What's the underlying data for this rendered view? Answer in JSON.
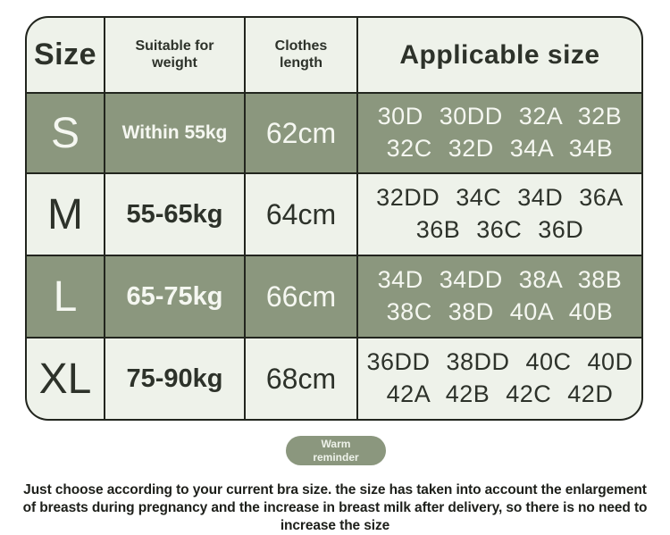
{
  "chart_data": {
    "type": "table",
    "title": "Applicable size",
    "columns": [
      "Size",
      "Suitable for weight",
      "Clothes length",
      "Applicable size"
    ],
    "rows": [
      [
        "S",
        "Within 55kg",
        "62cm",
        "30D 30DD 32A 32B 32C 32D 34A 34B"
      ],
      [
        "M",
        "55-65kg",
        "64cm",
        "32DD 34C 34D 36A 36B 36C 36D"
      ],
      [
        "L",
        "65-75kg",
        "66cm",
        "34D 34DD 38A 38B 38C 38D 40A 40B"
      ],
      [
        "XL",
        "75-90kg",
        "68cm",
        "36DD 38DD 40C 40D 42A 42B 42C 42D"
      ]
    ],
    "annotations": [
      "Warm reminder",
      "Just choose according to your current bra size. the size has taken into account the enlargement of breasts during pregnancy and the increase in breast milk after delivery, so there is no need to increase the size"
    ],
    "layout": "alternating row highlight: S and L rows sage green, M and XL rows light"
  },
  "table": {
    "headers": {
      "size": "Size",
      "weight": "Suitable for weight",
      "length": "Clothes length",
      "applicable": "Applicable size"
    },
    "rows": [
      {
        "size": "S",
        "weight": "Within 55kg",
        "length": "62cm",
        "sizes1": "30D 30DD 32A 32B",
        "sizes2": "32C 32D 34A 34B"
      },
      {
        "size": "M",
        "weight": "55-65kg",
        "length": "64cm",
        "sizes1": "32DD 34C 34D 36A",
        "sizes2": "36B 36C 36D"
      },
      {
        "size": "L",
        "weight": "65-75kg",
        "length": "66cm",
        "sizes1": "34D 34DD 38A 38B",
        "sizes2": "38C 38D 40A 40B"
      },
      {
        "size": "XL",
        "weight": "75-90kg",
        "length": "68cm",
        "sizes1": "36DD 38DD 40C 40D",
        "sizes2": "42A 42B 42C 42D"
      }
    ]
  },
  "badge": {
    "text": "Warm reminder"
  },
  "footer": {
    "text": "Just choose according to your current bra size. the size has taken into account the enlargement of breasts during pregnancy and the increase in breast milk after delivery, so there is no need to increase the size"
  },
  "colors": {
    "row_highlight_green": "#8b977e",
    "row_light": "#eef2ea",
    "grid_line": "#22251e",
    "dark_text": "#2d322a",
    "light_text": "#f5f7f1",
    "page_background": "#ffffff"
  }
}
